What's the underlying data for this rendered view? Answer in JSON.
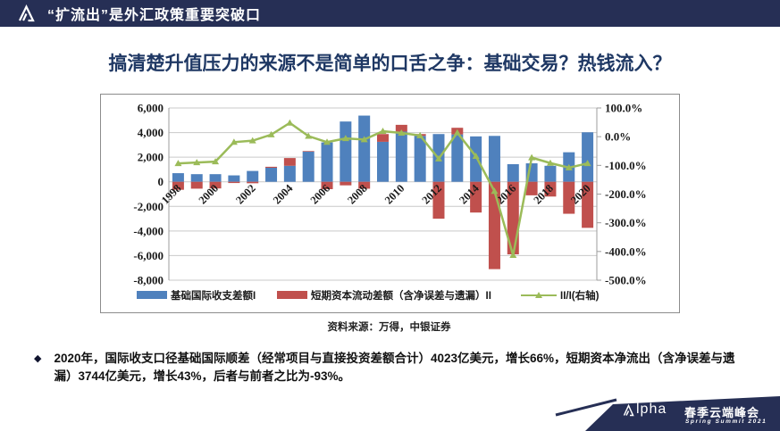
{
  "header": {
    "title": "“扩流出”是外汇政策重要突破口"
  },
  "slide": {
    "title": "搞清楚升值压力的来源不是简单的口舌之争：基础交易？热钱流入？"
  },
  "chart_data": {
    "type": "bar",
    "stacked": true,
    "x": [
      1998,
      1999,
      2000,
      2001,
      2002,
      2003,
      2004,
      2005,
      2006,
      2007,
      2008,
      2009,
      2010,
      2011,
      2012,
      2013,
      2014,
      2015,
      2016,
      2017,
      2018,
      2019,
      2020
    ],
    "x_tick_interval": 2,
    "series": [
      {
        "name": "基础国际收支差额I",
        "type": "bar",
        "axis": "left",
        "color": "#4f81bd",
        "values": [
          700,
          620,
          620,
          520,
          880,
          1140,
          1300,
          2450,
          3200,
          4900,
          5380,
          3250,
          4080,
          3730,
          3880,
          3850,
          3690,
          3730,
          1430,
          1500,
          1300,
          2400,
          4023
        ]
      },
      {
        "name": "短期资本流动差额（含净误差与遗漏）II",
        "type": "bar",
        "axis": "left",
        "color": "#c0504d",
        "values": [
          -650,
          -560,
          -540,
          -100,
          -120,
          80,
          630,
          50,
          -600,
          -290,
          -560,
          630,
          550,
          150,
          -3000,
          540,
          -2500,
          -7100,
          -5900,
          -1100,
          -1200,
          -2600,
          -3744
        ]
      },
      {
        "name": "II/I(右轴)",
        "type": "line",
        "axis": "right",
        "color": "#9bbb59",
        "unit": "%",
        "values": [
          -93,
          -90,
          -87,
          -19,
          -14,
          7,
          48,
          2,
          -19,
          -6,
          -10,
          19,
          13,
          4,
          -77,
          14,
          -68,
          -190,
          -413,
          -73,
          -92,
          -108,
          -93
        ]
      }
    ],
    "left_axis": {
      "max": 6000,
      "min": -8000,
      "step": 2000,
      "tick_labels": [
        "6,000",
        "4,000",
        "2,000",
        "0",
        "-2,000",
        "-4,000",
        "-6,000",
        "-8,000"
      ]
    },
    "right_axis": {
      "max": 100,
      "min": -500,
      "step": 100,
      "tick_labels": [
        "100.0%",
        "0.0%",
        "-100.0%",
        "-200.0%",
        "-300.0%",
        "-400.0%",
        "-500.0%"
      ]
    },
    "grid": true,
    "legend_position": "bottom"
  },
  "source": {
    "text": "资料来源：万得，中银证券"
  },
  "bullet": {
    "marker": "◆",
    "text": "2020年，国际收支口径基础国际顺差（经常项目与直接投资差额合计）4023亿美元，增长66%，短期资本净流出（含净误差与遗漏）3744亿美元，增长43%，后者与前者之比为-93%。"
  },
  "footer": {
    "brand_rest": "lpha",
    "brand_cn": "春季云端峰会",
    "brand_en": "Spring Summit 2021"
  },
  "colors": {
    "navy": "#262f55",
    "title_blue": "#1f3864",
    "bar_blue": "#4f81bd",
    "bar_red": "#c0504d",
    "line_green": "#9bbb59"
  }
}
